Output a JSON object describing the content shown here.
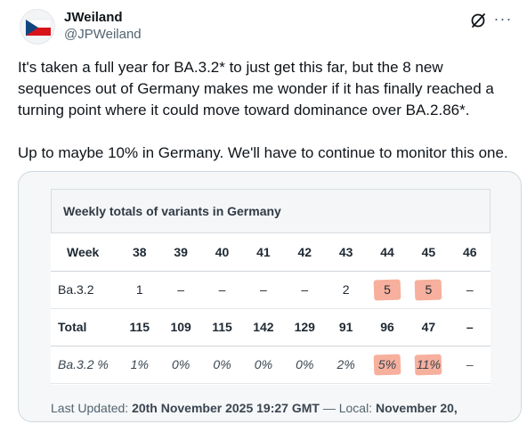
{
  "post": {
    "author_name": "JWeiland",
    "author_handle": "@JPWeiland",
    "paragraph1": "It's taken a full year for BA.3.2* to just get this far, but the 8 new sequences out of Germany makes me wonder if it has finally reached a turning point where it could move toward dominance over BA.2.86*.",
    "paragraph2": "Up to maybe 10% in Germany. We'll have to continue to monitor this one.",
    "more_icon": "more-horizontal-icon",
    "edit_icon": "grok-slash-icon"
  },
  "table": {
    "title": "Weekly totals of variants in Germany",
    "header_label": "Week",
    "weeks": [
      "38",
      "39",
      "40",
      "41",
      "42",
      "43",
      "44",
      "45",
      "46"
    ],
    "rows": [
      {
        "label": "Ba.3.2",
        "values": [
          "1",
          "–",
          "–",
          "–",
          "–",
          "2",
          "5",
          "5",
          "–"
        ]
      },
      {
        "label": "Total",
        "values": [
          "115",
          "109",
          "115",
          "142",
          "129",
          "91",
          "96",
          "47",
          "–"
        ]
      },
      {
        "label": "Ba.3.2 %",
        "values": [
          "1%",
          "0%",
          "0%",
          "0%",
          "0%",
          "2%",
          "5%",
          "11%",
          "–"
        ]
      }
    ],
    "highlight_color": "#f4a28c"
  },
  "footer": {
    "prefix": "Last Updated: ",
    "date": "20th November 2025 19:27 GMT",
    "sep": " — Local: ",
    "local": "November 20,"
  }
}
